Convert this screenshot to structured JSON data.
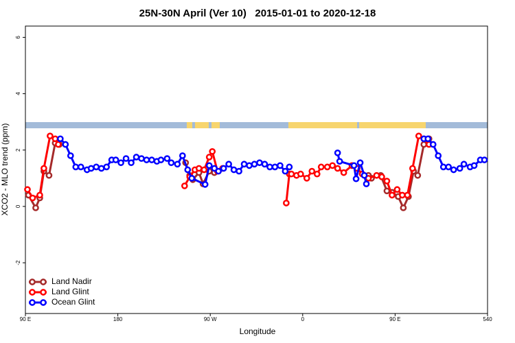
{
  "chart_data": {
    "type": "line",
    "title": "25N-30N April (Ver 10)   2015-01-01 to 2020-12-18",
    "x_label": "Longitude",
    "y_label": "XCO2 - MLO trend (ppm)",
    "xlim": [
      90,
      540
    ],
    "ylim": [
      -3.8,
      6.4
    ],
    "xticks": [
      {
        "value": 90,
        "label": "90 E"
      },
      180,
      {
        "value": 270,
        "label": "90 W"
      },
      {
        "value": 360,
        "label": "0"
      },
      {
        "value": 450,
        "label": "90 E"
      },
      540
    ],
    "yticks": [
      -2,
      0,
      2,
      4,
      6
    ],
    "legend": "bottomleft",
    "series": [
      {
        "name": "Land Nadir",
        "color": "#a52a2a",
        "x": [
          93,
          100,
          104,
          108,
          113,
          119,
          123,
          185,
          246,
          250,
          253,
          259,
          263,
          269,
          274,
          400,
          424,
          427,
          436,
          442,
          447,
          453,
          458,
          463,
          468,
          472,
          478,
          483
        ],
        "values": [
          0.4,
          -0.05,
          0.3,
          1.25,
          1.1,
          2.25,
          2.2,
          null,
          1.55,
          1.1,
          0.95,
          1.2,
          0.8,
          1.25,
          1.2,
          null,
          1.1,
          1.0,
          1.1,
          0.55,
          0.5,
          0.35,
          -0.05,
          0.35,
          1.25,
          1.1,
          2.2,
          2.4
        ]
      },
      {
        "name": "Land Glint",
        "color": "#ff0000",
        "x": [
          92,
          97,
          104,
          108,
          114,
          119,
          122,
          185,
          245,
          250,
          255,
          259,
          264,
          269,
          272,
          277,
          282,
          320,
          344,
          347,
          349,
          354,
          358,
          364,
          369,
          374,
          378,
          384,
          389,
          394,
          400,
          408,
          413,
          418,
          424,
          432,
          437,
          442,
          447,
          452,
          457,
          462,
          467,
          473,
          478,
          483
        ],
        "values": [
          0.6,
          0.3,
          0.4,
          1.35,
          2.5,
          2.4,
          2.2,
          null,
          0.73,
          1.05,
          1.3,
          1.35,
          1.3,
          1.75,
          1.95,
          1.25,
          1.35,
          null,
          0.12,
          1.15,
          1.15,
          1.1,
          1.15,
          1.0,
          1.25,
          1.15,
          1.4,
          1.4,
          1.45,
          1.35,
          1.2,
          1.45,
          1.35,
          1.15,
          1.0,
          1.1,
          1.05,
          0.9,
          0.4,
          0.6,
          0.4,
          0.4,
          1.35,
          2.5,
          2.4,
          2.2
        ]
      },
      {
        "name": "Ocean Glint",
        "color": "#0000ff",
        "x": [
          124,
          129,
          134,
          139,
          144,
          150,
          154,
          159,
          164,
          169,
          174,
          178,
          183,
          188,
          193,
          198,
          203,
          208,
          213,
          218,
          222,
          228,
          232,
          238,
          243,
          248,
          252,
          265,
          269,
          274,
          278,
          283,
          288,
          293,
          298,
          303,
          308,
          313,
          318,
          323,
          328,
          333,
          338,
          343,
          347,
          370,
          394,
          396,
          410,
          412,
          416,
          420,
          422,
          450,
          478,
          482,
          487,
          492,
          497,
          502,
          507,
          513,
          517,
          523,
          527,
          533,
          537
        ],
        "values": [
          2.4,
          2.2,
          1.8,
          1.4,
          1.4,
          1.3,
          1.35,
          1.4,
          1.35,
          1.4,
          1.65,
          1.65,
          1.55,
          1.7,
          1.55,
          1.75,
          1.7,
          1.65,
          1.65,
          1.6,
          1.65,
          1.7,
          1.55,
          1.5,
          1.8,
          1.3,
          1.0,
          0.78,
          1.45,
          1.35,
          1.25,
          1.35,
          1.5,
          1.3,
          1.25,
          1.5,
          1.45,
          1.5,
          1.55,
          1.5,
          1.4,
          1.4,
          1.45,
          1.25,
          1.4,
          null,
          1.9,
          1.6,
          1.45,
          0.98,
          1.55,
          1.1,
          0.8,
          null,
          2.4,
          2.4,
          2.2,
          1.8,
          1.4,
          1.4,
          1.3,
          1.35,
          1.5,
          1.4,
          1.45,
          1.65,
          1.65
        ]
      }
    ]
  }
}
